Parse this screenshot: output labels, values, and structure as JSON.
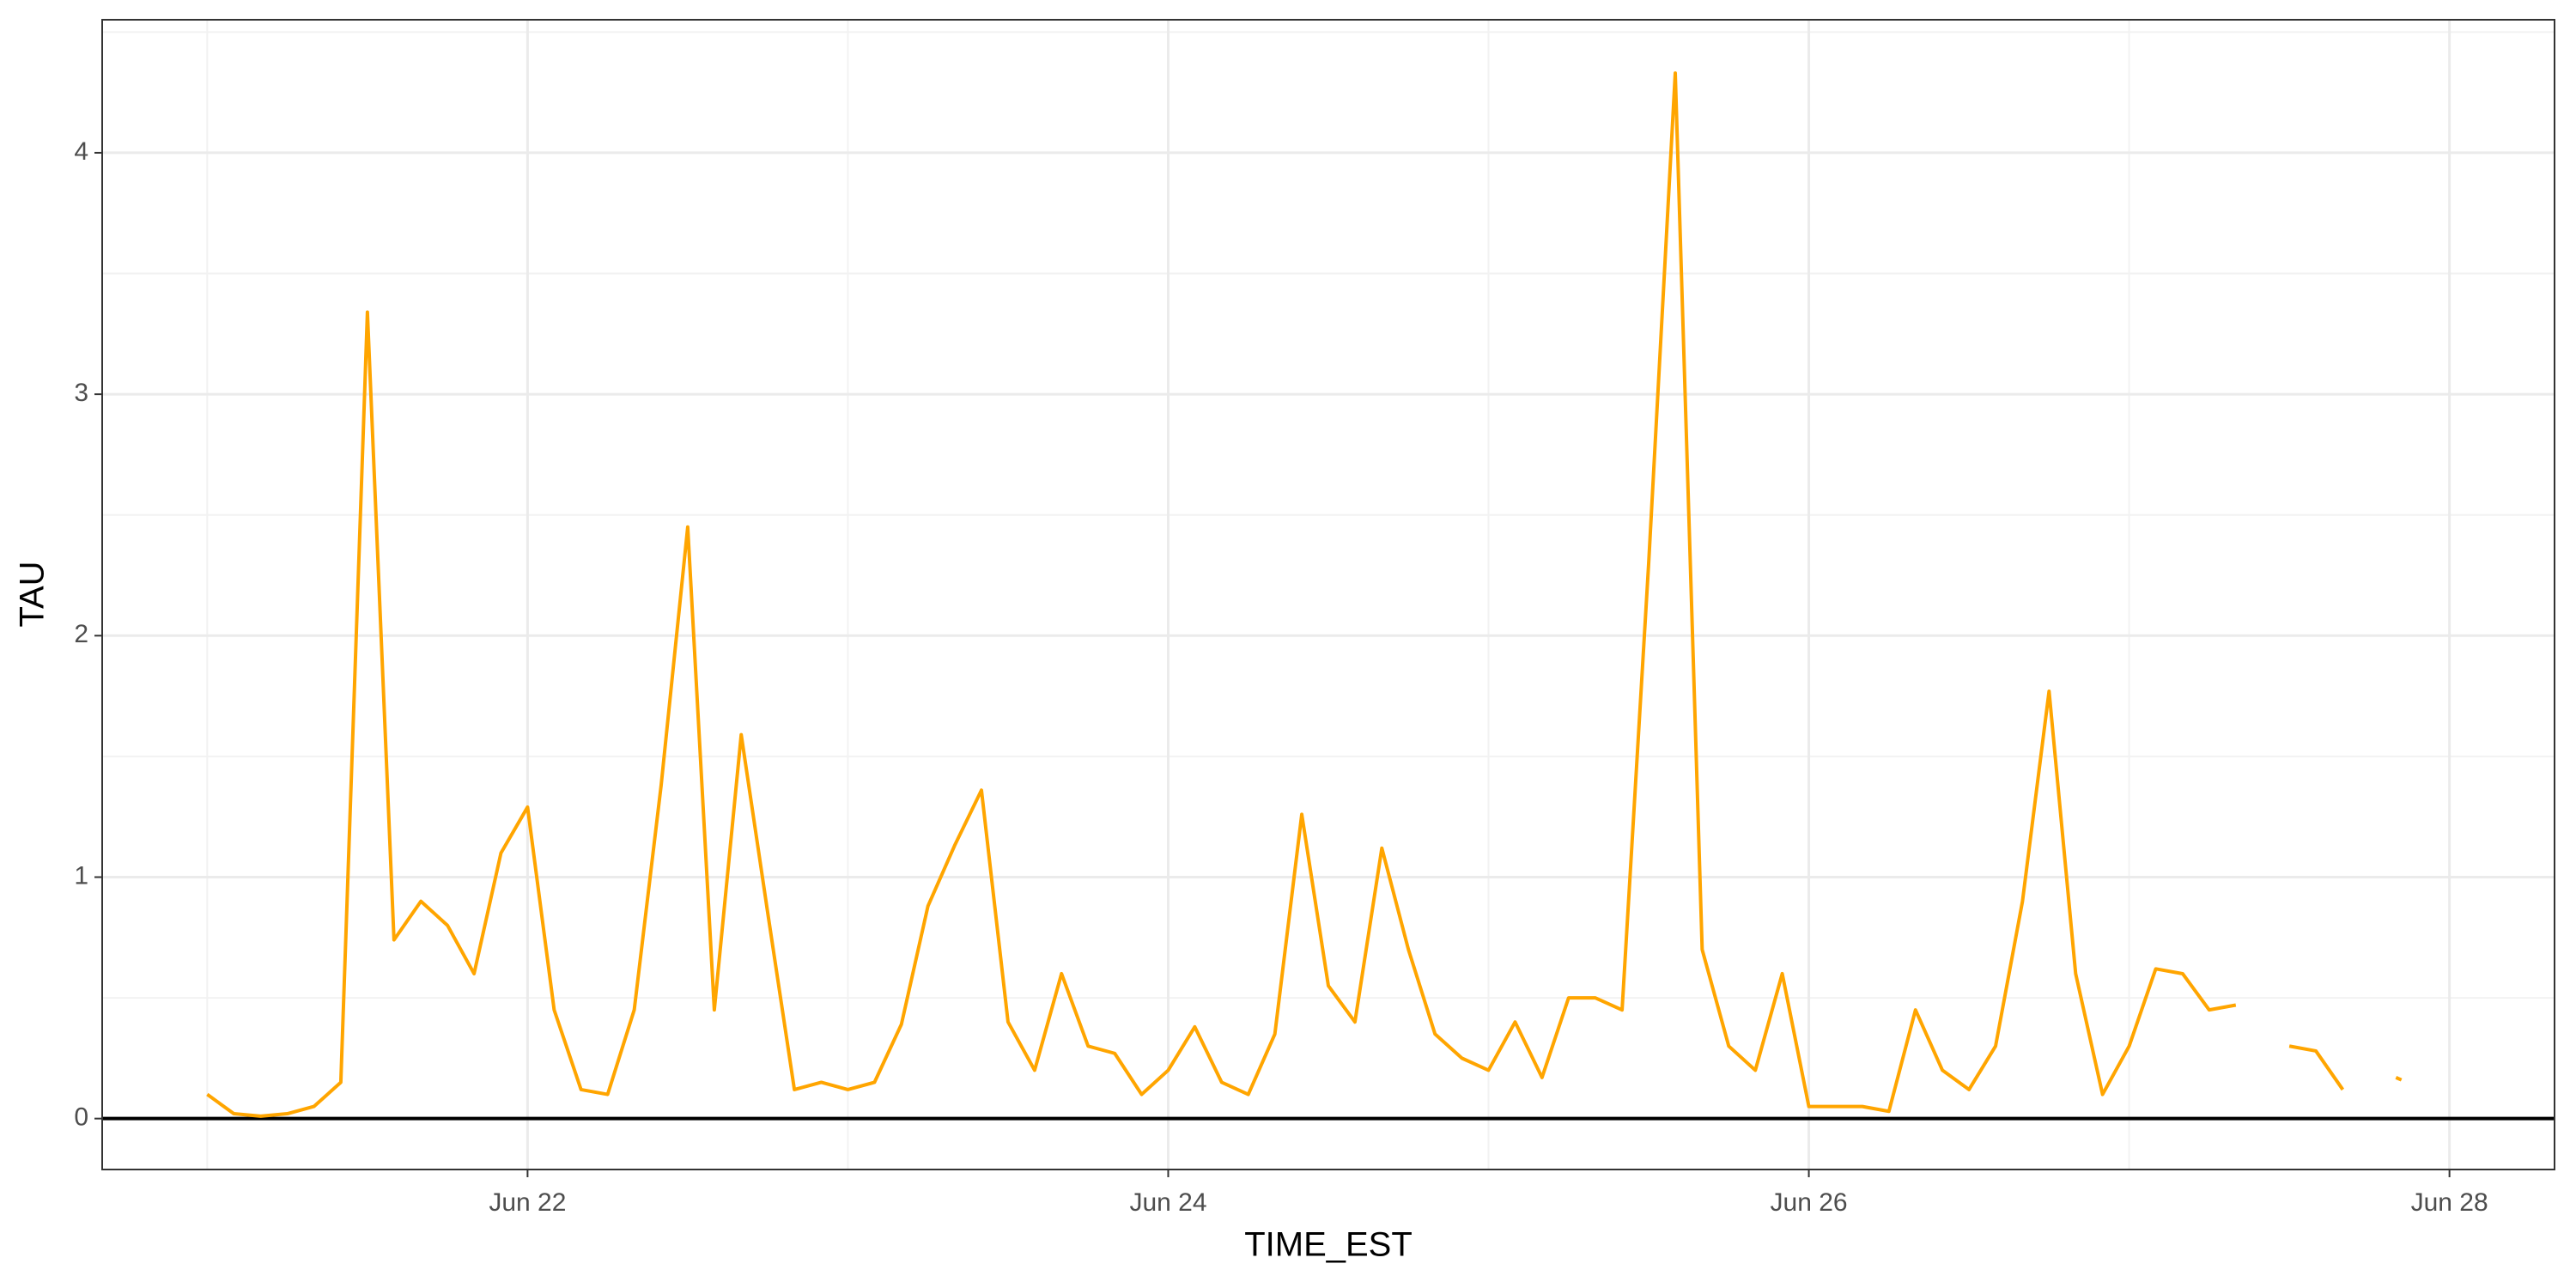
{
  "chart_data": {
    "type": "line",
    "xlabel": "TIME_EST",
    "ylabel": "TAU",
    "x": [
      21,
      21.083,
      21.167,
      21.25,
      21.333,
      21.417,
      21.5,
      21.583,
      21.667,
      21.75,
      21.833,
      21.917,
      22,
      22.083,
      22.167,
      22.25,
      22.333,
      22.417,
      22.5,
      22.583,
      22.667,
      22.75,
      22.833,
      22.917,
      23,
      23.083,
      23.167,
      23.25,
      23.333,
      23.417,
      23.5,
      23.583,
      23.667,
      23.75,
      23.833,
      23.917,
      24,
      24.083,
      24.167,
      24.25,
      24.333,
      24.417,
      24.5,
      24.583,
      24.667,
      24.75,
      24.833,
      24.917,
      25,
      25.083,
      25.167,
      25.25,
      25.333,
      25.417,
      25.5,
      25.583,
      25.667,
      25.75,
      25.833,
      25.917,
      26,
      26.083,
      26.167,
      26.25,
      26.333,
      26.417,
      26.5,
      26.583,
      26.667,
      26.75,
      26.833,
      26.917,
      27,
      27.083,
      27.167,
      27.25,
      27.333,
      27.417,
      27.5,
      27.583,
      27.667,
      27.75,
      27.833,
      27.85
    ],
    "series": [
      {
        "name": "TAU",
        "color": "#FFA500",
        "values": [
          0.1,
          0.02,
          0.01,
          0.02,
          0.05,
          0.15,
          3.34,
          0.74,
          0.9,
          0.8,
          0.6,
          1.1,
          1.29,
          0.45,
          0.12,
          0.1,
          0.45,
          1.38,
          2.45,
          0.45,
          1.59,
          0.85,
          0.12,
          0.15,
          0.12,
          0.15,
          0.39,
          0.88,
          1.13,
          1.36,
          0.4,
          0.2,
          0.6,
          0.3,
          0.27,
          0.1,
          0.2,
          0.38,
          0.15,
          0.1,
          0.35,
          1.26,
          0.55,
          0.4,
          1.12,
          0.7,
          0.35,
          0.25,
          0.2,
          0.4,
          0.17,
          0.5,
          0.5,
          0.45,
          2.3,
          4.33,
          0.7,
          0.3,
          0.2,
          0.6,
          0.05,
          0.05,
          0.05,
          0.03,
          0.45,
          0.2,
          0.12,
          0.3,
          0.9,
          1.77,
          0.6,
          0.1,
          0.3,
          0.62,
          0.6,
          0.45,
          0.47,
          null,
          0.3,
          0.28,
          0.12,
          null,
          0.17,
          0.16
        ]
      }
    ],
    "xlim": [
      20.672,
      28.328
    ],
    "xticks": [
      {
        "value": 22,
        "label": "Jun 22"
      },
      {
        "value": 24,
        "label": "Jun 24"
      },
      {
        "value": 26,
        "label": "Jun 26"
      },
      {
        "value": 28,
        "label": "Jun 28"
      }
    ],
    "x_minor_ticks": [
      21,
      23,
      25,
      27
    ],
    "ylim": [
      -0.211,
      4.551
    ],
    "yticks": [
      0,
      1,
      2,
      3,
      4
    ],
    "y_minor_ticks": [
      0.5,
      1.5,
      2.5,
      3.5,
      4.5
    ],
    "grid": true,
    "hline": 0
  }
}
